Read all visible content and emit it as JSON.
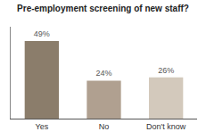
{
  "chart_data": {
    "type": "bar",
    "title": "Pre-employment screening of new staff?",
    "categories": [
      "Yes",
      "No",
      "Don't know"
    ],
    "values": [
      49,
      24,
      26
    ],
    "value_labels": [
      "49%",
      "24%",
      "26%"
    ],
    "colors": [
      "#8b7d6b",
      "#b0a090",
      "#d3c9bc"
    ],
    "ylim": [
      0,
      58
    ],
    "grid": false,
    "data_labels": true,
    "tick_labels": "x"
  }
}
